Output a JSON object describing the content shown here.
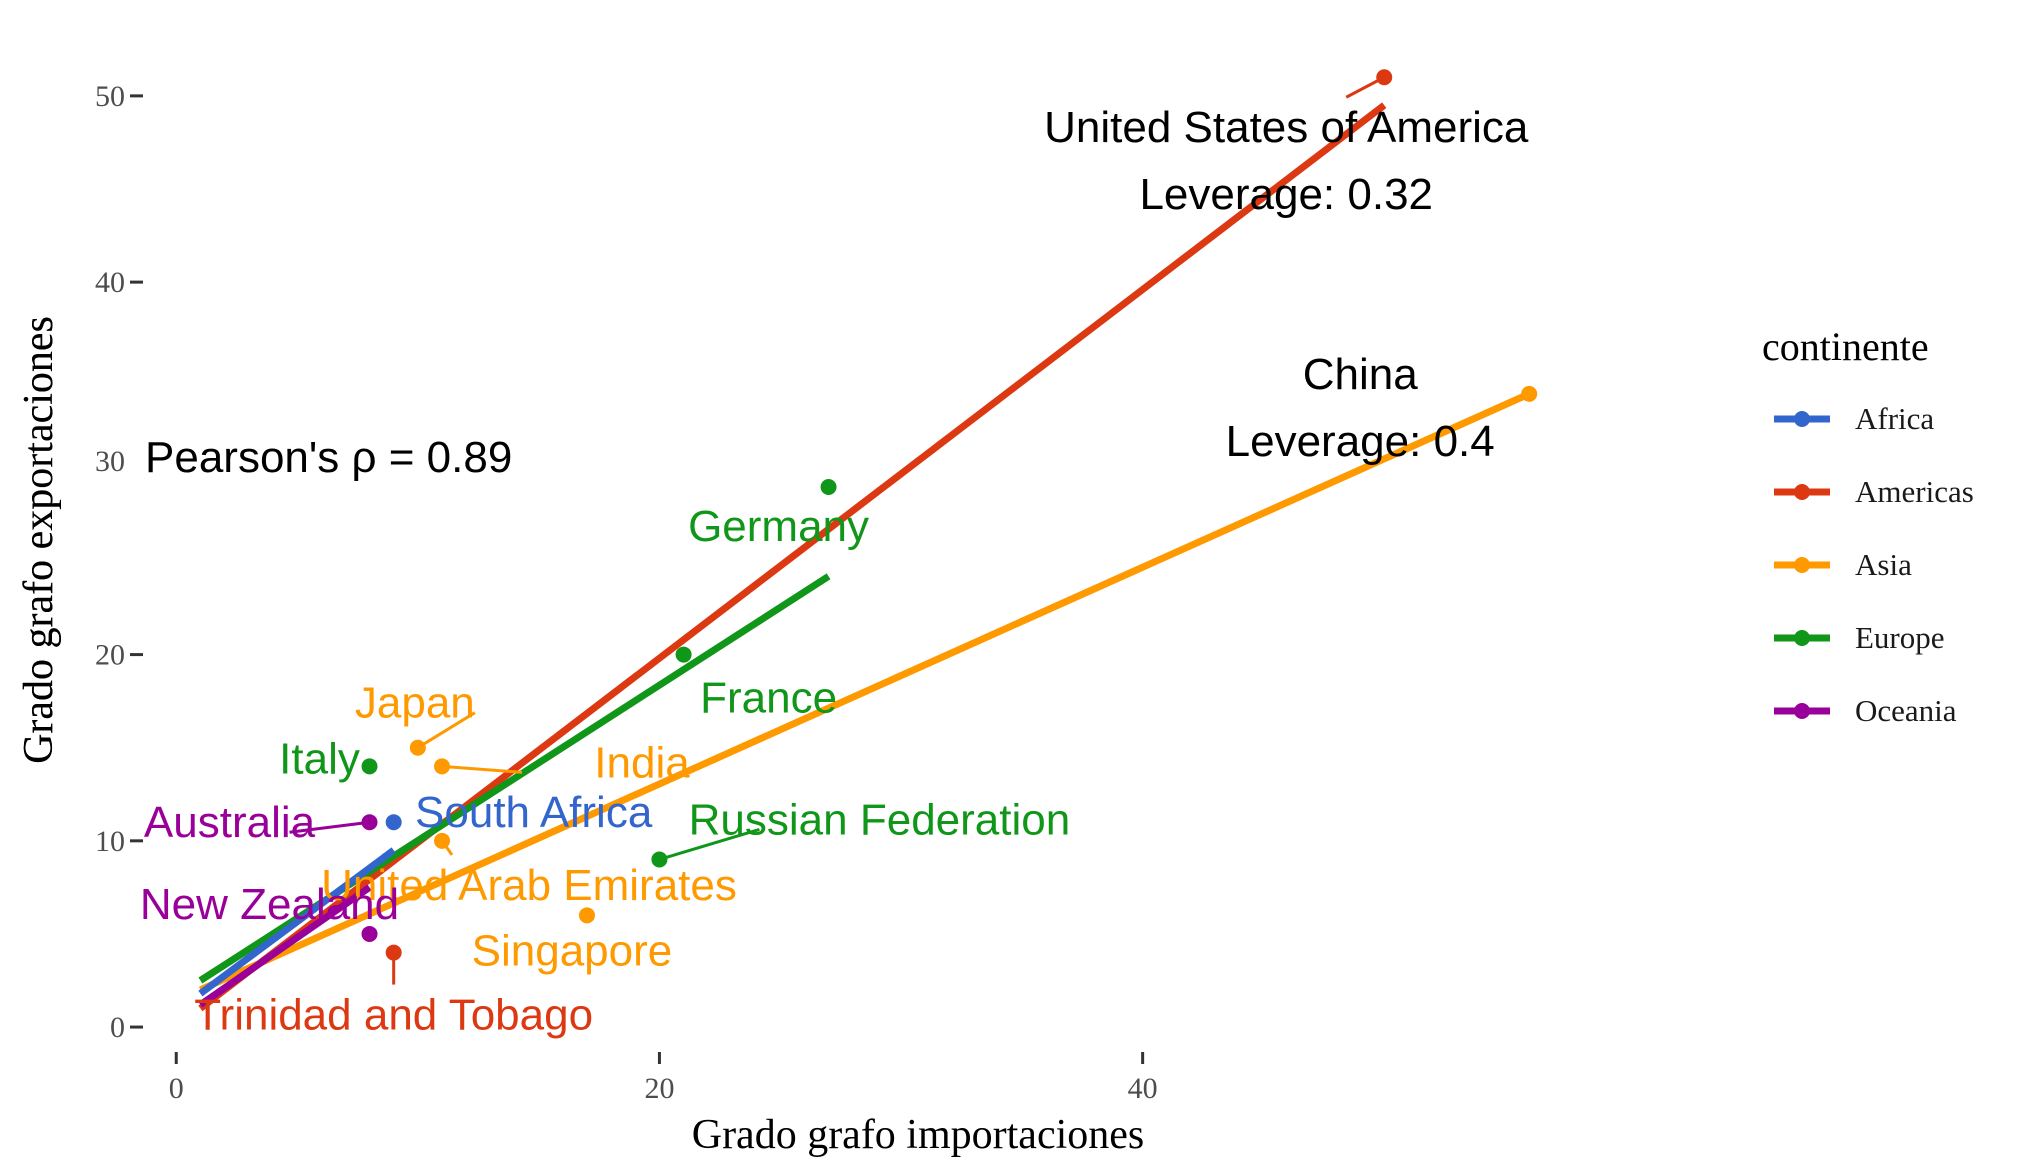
{
  "chart_data": {
    "type": "scatter",
    "xlabel": "Grado grafo importaciones",
    "ylabel": "Grado grafo exportaciones",
    "xlim": [
      -1.5,
      61
    ],
    "ylim": [
      -1.5,
      53
    ],
    "x_ticks": [
      0,
      20,
      40
    ],
    "y_ticks": [
      0,
      10,
      20,
      30,
      40,
      50
    ],
    "grid": false,
    "legend": {
      "title": "continente",
      "placement": "right",
      "entries": [
        {
          "name": "Africa",
          "color": "#3366cc"
        },
        {
          "name": "Americas",
          "color": "#dc3912"
        },
        {
          "name": "Asia",
          "color": "#ff9900"
        },
        {
          "name": "Europe",
          "color": "#109618"
        },
        {
          "name": "Oceania",
          "color": "#990099"
        }
      ]
    },
    "annotation": "Pearson's ρ = 0.89",
    "points": [
      {
        "label": "United States of America",
        "continent": "Americas",
        "x": 50,
        "y": 51
      },
      {
        "label": "China",
        "continent": "Asia",
        "x": 56,
        "y": 34
      },
      {
        "label": "Germany",
        "continent": "Europe",
        "x": 27,
        "y": 29
      },
      {
        "label": "France",
        "continent": "Europe",
        "x": 21,
        "y": 20
      },
      {
        "label": "Japan",
        "continent": "Asia",
        "x": 10,
        "y": 15
      },
      {
        "label": "India",
        "continent": "Asia",
        "x": 11,
        "y": 14
      },
      {
        "label": "Italy",
        "continent": "Europe",
        "x": 8,
        "y": 14
      },
      {
        "label": "Australia",
        "continent": "Oceania",
        "x": 8,
        "y": 11
      },
      {
        "label": "South Africa",
        "continent": "Africa",
        "x": 9,
        "y": 11
      },
      {
        "label": "United Arab Emirates",
        "continent": "Asia",
        "x": 11,
        "y": 10
      },
      {
        "label": "Russian Federation",
        "continent": "Europe",
        "x": 20,
        "y": 9
      },
      {
        "label": "Singapore",
        "continent": "Asia",
        "x": 17,
        "y": 6
      },
      {
        "label": "New Zealand",
        "continent": "Oceania",
        "x": 8,
        "y": 5
      },
      {
        "label": "Trinidad and Tobago",
        "continent": "Americas",
        "x": 9,
        "y": 4
      }
    ],
    "leverage_labels": [
      {
        "country": "United States of America",
        "text": "Leverage: 0.32"
      },
      {
        "country": "China",
        "text": "Leverage: 0.4"
      }
    ],
    "fit_lines": [
      {
        "continent": "Americas",
        "x": [
          1,
          50
        ],
        "y": [
          1,
          49.5
        ]
      },
      {
        "continent": "Asia",
        "x": [
          1,
          56
        ],
        "y": [
          2,
          34
        ]
      },
      {
        "continent": "Europe",
        "x": [
          1,
          27
        ],
        "y": [
          2.5,
          24.2
        ]
      },
      {
        "continent": "Oceania",
        "x": [
          1,
          8
        ],
        "y": [
          1.2,
          7.5
        ]
      },
      {
        "continent": "Africa",
        "x": [
          1,
          9
        ],
        "y": [
          1.8,
          9.5
        ]
      }
    ]
  }
}
